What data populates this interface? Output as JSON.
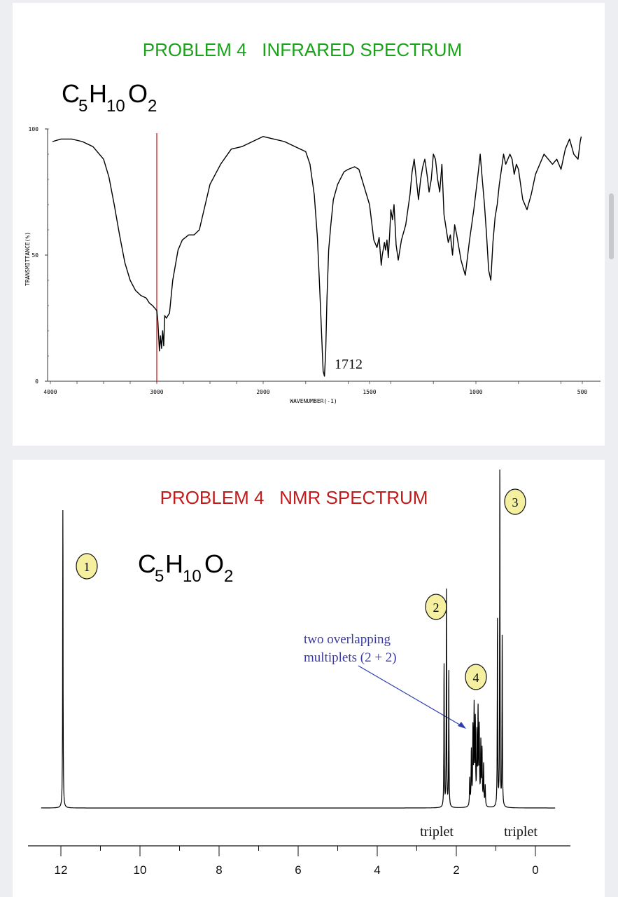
{
  "ir": {
    "title": "PROBLEM 4   INFRARED SPECTRUM",
    "formula": {
      "c": "C",
      "c_sub": "5",
      "h": "H",
      "h_sub": "10",
      "o": "O",
      "o_sub": "2"
    },
    "peak_label": "1712",
    "colors": {
      "title": "#1aa31a",
      "marker_line": "#d62020",
      "trace": "#000000"
    }
  },
  "nmr": {
    "title": "PROBLEM 4   NMR SPECTRUM",
    "formula": {
      "c": "C",
      "c_sub": "5",
      "h": "H",
      "h_sub": "10",
      "o": "O",
      "o_sub": "2"
    },
    "annotation": {
      "line1": "two overlapping",
      "line2": "multiplets (2 + 2)"
    },
    "labels": {
      "triplet_left": "triplet",
      "triplet_right": "triplet"
    },
    "circled_numbers": [
      "1",
      "2",
      "3",
      "4"
    ],
    "colors": {
      "title": "#c01c1c",
      "circle_fill": "#f4f0a0",
      "annotation_text": "#3a3aa0",
      "arrow": "#2f3fb0"
    }
  },
  "chart_data": [
    {
      "type": "line",
      "title": "PROBLEM 4   INFRARED SPECTRUM",
      "xlabel": "WAVENUMBER(-1)",
      "ylabel": "TRANSMITTANCE(%)",
      "xlim": [
        4000,
        500
      ],
      "ylim": [
        0,
        100
      ],
      "x_ticks": [
        "4000",
        "3000",
        "2000",
        "1500",
        "1000",
        "500"
      ],
      "y_ticks": [
        "100",
        "50",
        "0"
      ],
      "annotations": [
        {
          "label": "1712",
          "x": 1712
        }
      ],
      "reference_line_x": 3000,
      "series": [
        {
          "x": [
            3980,
            3900,
            3800,
            3700,
            3600,
            3500,
            3450,
            3400,
            3350,
            3300,
            3250,
            3200,
            3150,
            3100,
            3070,
            3040,
            3020,
            3000,
            2990,
            2975,
            2965,
            2955,
            2945,
            2935,
            2925,
            2910,
            2880,
            2850,
            2800,
            2760,
            2700,
            2650,
            2600,
            2500,
            2400,
            2300,
            2200,
            2100,
            2000,
            1950,
            1900,
            1850,
            1800,
            1780,
            1760,
            1745,
            1735,
            1725,
            1718,
            1712,
            1706,
            1700,
            1692,
            1682,
            1670,
            1650,
            1620,
            1600,
            1570,
            1550,
            1500,
            1480,
            1465,
            1455,
            1445,
            1440,
            1430,
            1425,
            1418,
            1412,
            1405,
            1400,
            1392,
            1385,
            1375,
            1365,
            1350,
            1330,
            1310,
            1300,
            1290,
            1280,
            1270,
            1260,
            1250,
            1240,
            1230,
            1220,
            1210,
            1200,
            1190,
            1180,
            1170,
            1160,
            1150,
            1130,
            1120,
            1110,
            1100,
            1090,
            1070,
            1050,
            1030,
            1010,
            1000,
            990,
            980,
            970,
            960,
            950,
            940,
            930,
            920,
            910,
            900,
            890,
            880,
            870,
            860,
            850,
            840,
            830,
            820,
            810,
            800,
            780,
            760,
            740,
            720,
            700,
            680,
            660,
            640,
            620,
            600,
            580,
            560,
            540,
            520,
            510,
            505
          ],
          "y": [
            95,
            96,
            96,
            95,
            93,
            88,
            81,
            70,
            58,
            47,
            40,
            36,
            34,
            33,
            31,
            30,
            29,
            28,
            24,
            12,
            18,
            13,
            20,
            14,
            26,
            25,
            27,
            40,
            52,
            56,
            58,
            58,
            60,
            78,
            86,
            92,
            93,
            95,
            97,
            96,
            95,
            93,
            91,
            86,
            74,
            57,
            38,
            18,
            4,
            2,
            12,
            33,
            52,
            62,
            72,
            78,
            83,
            84,
            85,
            84,
            70,
            56,
            53,
            57,
            46,
            50,
            55,
            52,
            56,
            49,
            59,
            68,
            64,
            70,
            54,
            48,
            56,
            62,
            74,
            83,
            88,
            80,
            72,
            80,
            85,
            88,
            82,
            75,
            80,
            90,
            88,
            80,
            75,
            86,
            66,
            55,
            58,
            50,
            62,
            58,
            48,
            42,
            56,
            68,
            75,
            82,
            90,
            80,
            70,
            58,
            44,
            40,
            55,
            65,
            70,
            78,
            84,
            90,
            86,
            88,
            90,
            88,
            82,
            86,
            84,
            72,
            68,
            74,
            82,
            86,
            90,
            88,
            86,
            88,
            84,
            92,
            96,
            90,
            88,
            95,
            97
          ],
          "name": ""
        }
      ]
    },
    {
      "type": "line",
      "title": "PROBLEM 4   NMR SPECTRUM",
      "xlabel": "",
      "ylabel": "",
      "xlim": [
        12.5,
        -0.5
      ],
      "x_ticks": [
        "12",
        "10",
        "8",
        "6",
        "4",
        "2",
        "0"
      ],
      "peaks": [
        {
          "label": "1",
          "ppm": 11.95,
          "multiplicity": "singlet",
          "height": 0.88
        },
        {
          "label": "2",
          "ppm": 2.25,
          "multiplicity": "triplet",
          "height": 0.64
        },
        {
          "label": "4",
          "ppm": 1.45,
          "multiplicity": "two overlapping multiplets (2 + 2)",
          "height": 0.31
        },
        {
          "label": "3",
          "ppm": 0.9,
          "multiplicity": "triplet",
          "height": 1.0
        }
      ],
      "series": [
        {
          "name": "",
          "x": [],
          "y": []
        }
      ]
    }
  ]
}
